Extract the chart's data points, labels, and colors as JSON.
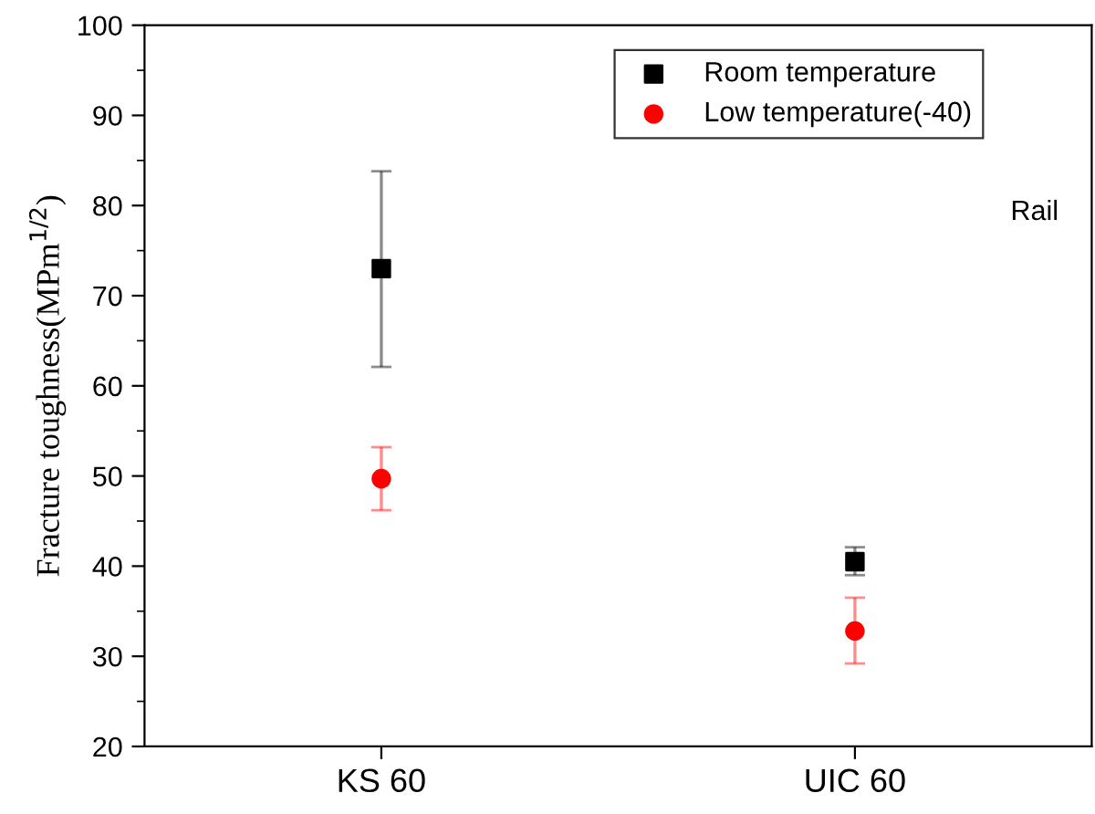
{
  "chart_data": {
    "type": "scatter",
    "ylabel": "Fracture toughness(MPm$^{1/2}$)",
    "categories": [
      "KS 60",
      "UIC 60"
    ],
    "series": [
      {
        "name": "Room temperature",
        "color": "#000000",
        "marker": "square",
        "values": [
          73.0,
          40.5
        ],
        "errors": [
          [
            62.1,
            83.8
          ],
          [
            39.0,
            42.1
          ]
        ]
      },
      {
        "name": "Low temperature(-40)",
        "color": "#ff0000",
        "marker": "circle",
        "values": [
          49.7,
          32.8
        ],
        "errors": [
          [
            46.2,
            53.2
          ],
          [
            29.2,
            36.5
          ]
        ]
      }
    ],
    "ylim": [
      20,
      100
    ],
    "yticks": [
      20,
      30,
      40,
      50,
      60,
      70,
      80,
      90,
      100
    ],
    "annotations": [
      "Rail"
    ],
    "legend": "top right",
    "grid": false
  }
}
